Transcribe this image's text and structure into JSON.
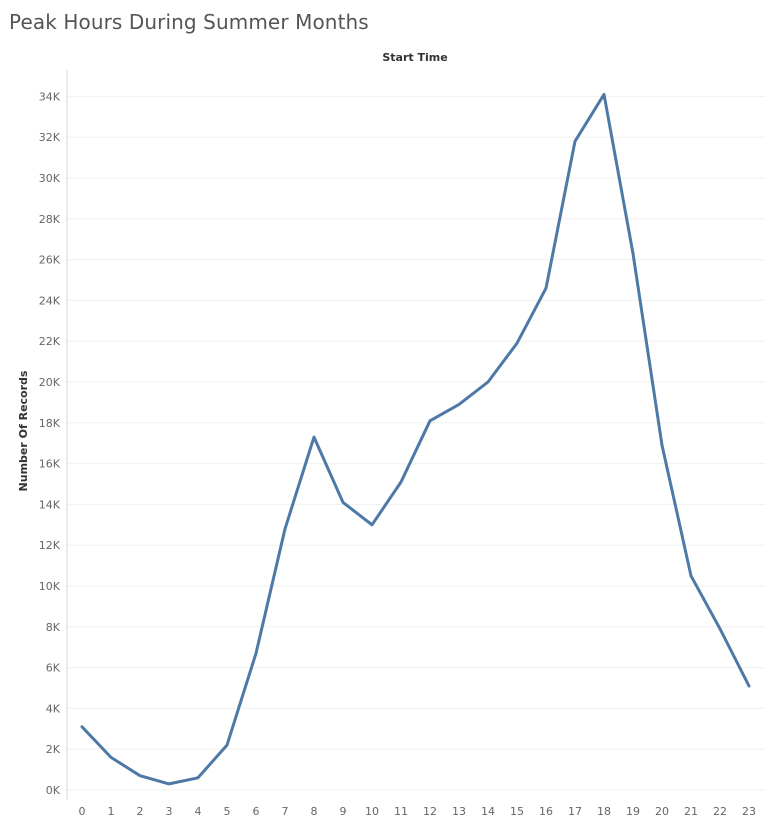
{
  "chart_data": {
    "type": "line",
    "title": "Peak Hours During Summer Months",
    "column_header": "Start Time",
    "xlabel": "",
    "ylabel": "Number Of Records",
    "x": [
      0,
      1,
      2,
      3,
      4,
      5,
      6,
      7,
      8,
      9,
      10,
      11,
      12,
      13,
      14,
      15,
      16,
      17,
      18,
      19,
      20,
      21,
      22,
      23
    ],
    "series": [
      {
        "name": "",
        "color": "#4e79a7",
        "values": [
          3100,
          1600,
          700,
          300,
          600,
          2200,
          6700,
          12800,
          17300,
          14100,
          13000,
          15100,
          18100,
          18900,
          20000,
          21900,
          24600,
          31800,
          34100,
          26300,
          16900,
          10500,
          7900,
          5100
        ]
      }
    ],
    "ylim": [
      0,
      35000
    ],
    "yticks": [
      0,
      2000,
      4000,
      6000,
      8000,
      10000,
      12000,
      14000,
      16000,
      18000,
      20000,
      22000,
      24000,
      26000,
      28000,
      30000,
      32000,
      34000
    ],
    "ytick_labels": [
      "0K",
      "2K",
      "4K",
      "6K",
      "8K",
      "10K",
      "12K",
      "14K",
      "16K",
      "18K",
      "20K",
      "22K",
      "24K",
      "26K",
      "28K",
      "30K",
      "32K",
      "34K"
    ],
    "grid": true,
    "legend": "none"
  }
}
